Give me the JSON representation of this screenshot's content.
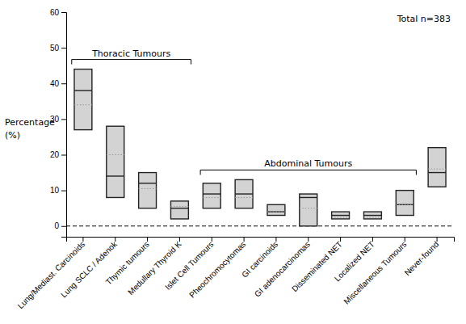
{
  "chart_data": {
    "type": "box",
    "title": "Total n=383",
    "ylabel": [
      "Percentage",
      "(%)"
    ],
    "categories": [
      "Lung/Mediast. Carcinoids",
      "Lung SCLC / Adenok",
      "Thymic tumours",
      "Medullary Thyroid K",
      "Islet Cell Tumours",
      "Pheochromocytomas",
      "GI carcinoids",
      "GI adenocarcinomas",
      "Disseminated NET",
      "Localized NET",
      "Miscellaneous Tumours",
      "Never-found"
    ],
    "boxes": [
      {
        "q1": 27,
        "median": 38,
        "q3": 44,
        "mean": 34
      },
      {
        "q1": 8,
        "median": 14,
        "q3": 28,
        "mean": 20
      },
      {
        "q1": 5,
        "median": 12,
        "q3": 15,
        "mean": 10.5
      },
      {
        "q1": 2,
        "median": 5,
        "q3": 7,
        "mean": 5.5
      },
      {
        "q1": 5,
        "median": 9,
        "q3": 12,
        "mean": 8
      },
      {
        "q1": 5,
        "median": 9,
        "q3": 13,
        "mean": 8
      },
      {
        "q1": 3,
        "median": 4,
        "q3": 6,
        "mean": 4
      },
      {
        "q1": 0,
        "median": 8,
        "q3": 9,
        "mean": 5
      },
      {
        "q1": 2,
        "median": 3,
        "q3": 4,
        "mean": 2.5
      },
      {
        "q1": 2,
        "median": 3,
        "q3": 4,
        "mean": 2.5
      },
      {
        "q1": 3,
        "median": 6,
        "q3": 10,
        "mean": 6
      },
      {
        "q1": 11,
        "median": 15,
        "q3": 22,
        "mean": 16
      }
    ],
    "color": "#d3d3d3",
    "hlines": [
      0
    ],
    "annotations": [
      {
        "text": "Thoracic Tumours",
        "from": "Lung/Mediast. Carcinoids",
        "to": "Medullary Thyroid K"
      },
      {
        "text": "Abdominal Tumours",
        "from": "Islet Cell Tumours",
        "to": "Miscellaneous Tumours"
      }
    ],
    "ylim": [
      -3,
      60
    ],
    "yticks": [
      0,
      10,
      20,
      30,
      40,
      50,
      60
    ],
    "grid": false,
    "legend": false
  }
}
